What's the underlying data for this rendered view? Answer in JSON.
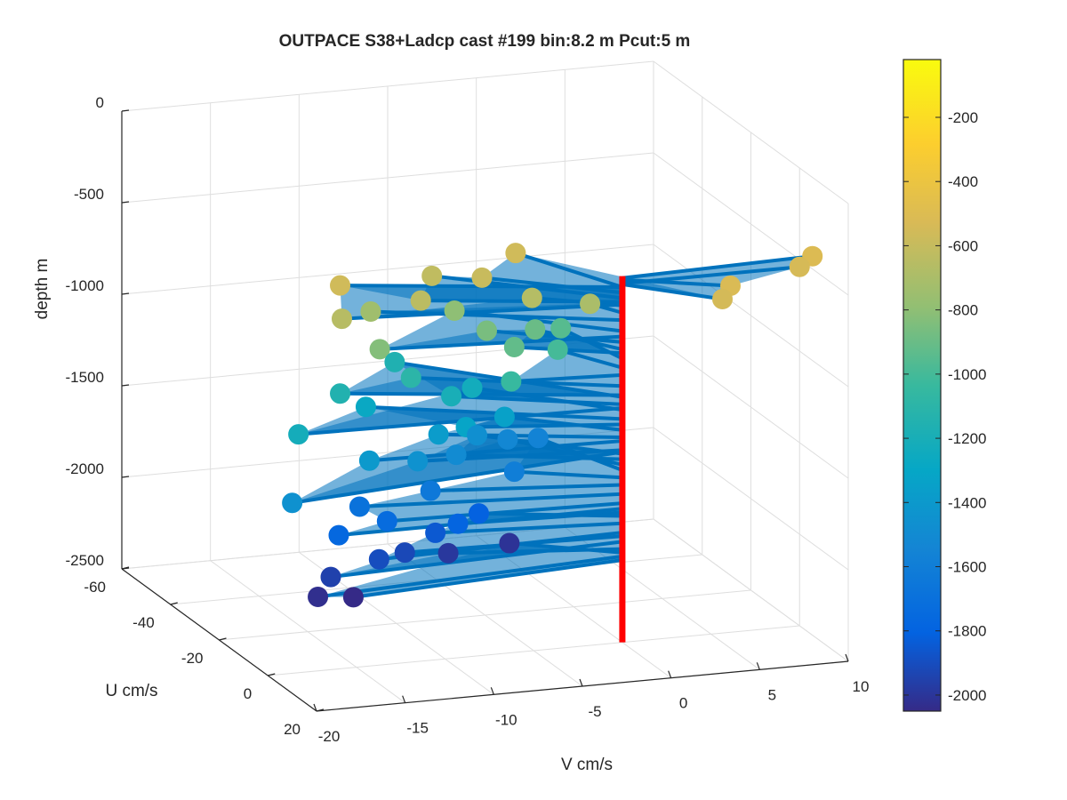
{
  "chart_data": {
    "type": "scatter",
    "title": "OUTPACE S38+Ladcp cast #199 bin:8.2 m  Pcut:5 m",
    "xlabel": "V cm/s",
    "ylabel": "U cm/s",
    "zlabel": "depth m",
    "xlim": [
      -20,
      10
    ],
    "ylim": [
      -60,
      20
    ],
    "zlim": [
      -2500,
      0
    ],
    "xticks": [
      "-20",
      "-15",
      "-10",
      "-5",
      "0",
      "5",
      "10"
    ],
    "yticks": [
      "-60",
      "-40",
      "-20",
      "0",
      "20"
    ],
    "zticks": [
      "0",
      "-500",
      "-1000",
      "-1500",
      "-2000",
      "-2500"
    ],
    "grid": true,
    "colormap": "parula",
    "colorbar": {
      "ticks": [
        "-200",
        "-400",
        "-600",
        "-800",
        "-1000",
        "-1200",
        "-1400",
        "-1600",
        "-1800",
        "-2000"
      ],
      "range": [
        -2050,
        -20
      ]
    },
    "series": [
      {
        "kind": "velocity-vectors",
        "line_color": "#0072BD",
        "origin_v": 0,
        "origin_u": 0,
        "points": [
          {
            "v": 11,
            "u": -2,
            "z": -510
          },
          {
            "v": 10,
            "u": 0,
            "z": -540
          },
          {
            "v": 5,
            "u": 8,
            "z": -520
          },
          {
            "v": 4,
            "u": 12,
            "z": -545
          },
          {
            "v": -3,
            "u": -22,
            "z": -560
          },
          {
            "v": -6,
            "u": -14,
            "z": -590
          },
          {
            "v": -8,
            "u": -20,
            "z": -620
          },
          {
            "v": -10,
            "u": -10,
            "z": -640
          },
          {
            "v": -14,
            "u": -14,
            "z": -560
          },
          {
            "v": -15,
            "u": -6,
            "z": -655
          },
          {
            "v": -4,
            "u": -8,
            "z": -660
          },
          {
            "v": -1,
            "u": -6,
            "z": -700
          },
          {
            "v": -12,
            "u": -16,
            "z": -740
          },
          {
            "v": -7,
            "u": -18,
            "z": -800
          },
          {
            "v": -13,
            "u": -5,
            "z": -830
          },
          {
            "v": -6,
            "u": -12,
            "z": -860
          },
          {
            "v": -3,
            "u": -14,
            "z": -900
          },
          {
            "v": -5,
            "u": -8,
            "z": -920
          },
          {
            "v": -1,
            "u": -18,
            "z": -950
          },
          {
            "v": -2,
            "u": -12,
            "z": -1000
          },
          {
            "v": -6,
            "u": -2,
            "z": -1040
          },
          {
            "v": -10,
            "u": -14,
            "z": -1100
          },
          {
            "v": -14,
            "u": -14,
            "z": -1150
          },
          {
            "v": -9,
            "u": -28,
            "z": -1160
          },
          {
            "v": -8,
            "u": -12,
            "z": -1200
          },
          {
            "v": -6,
            "u": -18,
            "z": -1230
          },
          {
            "v": -18,
            "u": -2,
            "z": -1220
          },
          {
            "v": -12,
            "u": -18,
            "z": -1280
          },
          {
            "v": -8,
            "u": -6,
            "z": -1310
          },
          {
            "v": -5,
            "u": -12,
            "z": -1340
          },
          {
            "v": -9,
            "u": -10,
            "z": -1380
          },
          {
            "v": -14,
            "u": -2,
            "z": -1400
          },
          {
            "v": -20,
            "u": 10,
            "z": -1460
          },
          {
            "v": -11,
            "u": -4,
            "z": -1450
          },
          {
            "v": -6,
            "u": -16,
            "z": -1470
          },
          {
            "v": -8,
            "u": -10,
            "z": -1500
          },
          {
            "v": -4,
            "u": -18,
            "z": -1530
          },
          {
            "v": -2,
            "u": -20,
            "z": -1560
          },
          {
            "v": -5,
            "u": -8,
            "z": -1600
          },
          {
            "v": -10,
            "u": -6,
            "z": -1640
          },
          {
            "v": -14,
            "u": -6,
            "z": -1690
          },
          {
            "v": -13,
            "u": -2,
            "z": -1740
          },
          {
            "v": -16,
            "u": 0,
            "z": -1770
          },
          {
            "v": -9,
            "u": -2,
            "z": -1790
          },
          {
            "v": -7,
            "u": -8,
            "z": -1810
          },
          {
            "v": -10,
            "u": -4,
            "z": -1850
          },
          {
            "v": -14,
            "u": 2,
            "z": -1900
          },
          {
            "v": -12,
            "u": -2,
            "z": -1920
          },
          {
            "v": -17,
            "u": 4,
            "z": -1950
          },
          {
            "v": -9,
            "u": -6,
            "z": -1990
          },
          {
            "v": -5,
            "u": -10,
            "z": -2010
          },
          {
            "v": -18,
            "u": 6,
            "z": -2030
          },
          {
            "v": -16,
            "u": 6,
            "z": -2050
          }
        ]
      },
      {
        "kind": "vertical-line",
        "color": "#FF0000",
        "v": 0,
        "u": 0,
        "z_from": -500,
        "z_to": -2500
      }
    ]
  }
}
